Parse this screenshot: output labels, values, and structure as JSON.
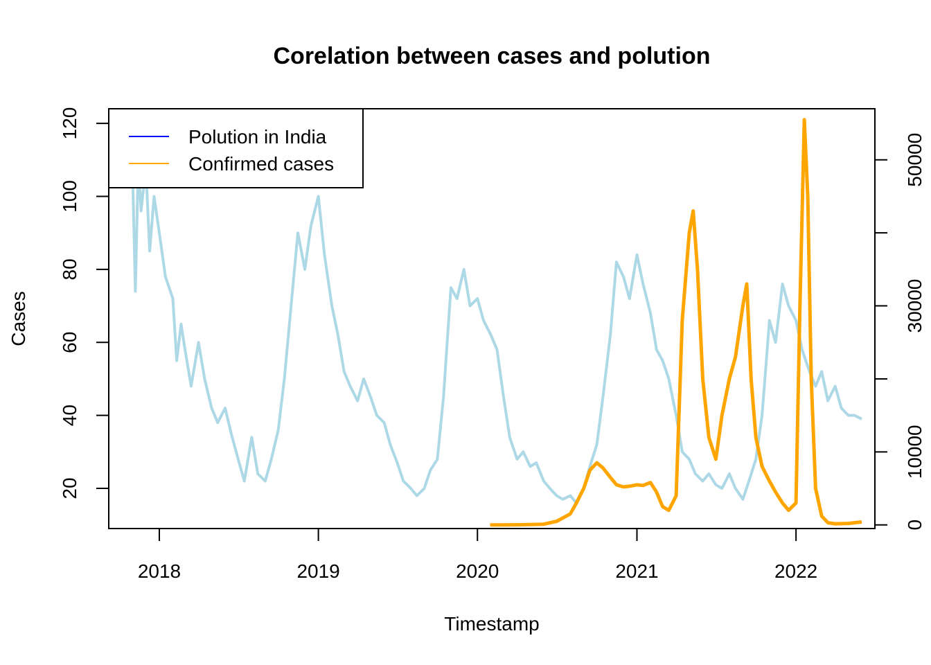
{
  "chart_data": {
    "type": "line",
    "title": "Corelation between cases and polution",
    "xlabel": "Timestamp",
    "ylabel": "Cases",
    "x_ticks": [
      "2018",
      "2019",
      "2020",
      "2021",
      "2022"
    ],
    "x_range": [
      "2017-09-07",
      "2022-07-01"
    ],
    "y_left_ticks": [
      20,
      40,
      60,
      80,
      100,
      120
    ],
    "y_left_range": [
      9,
      124
    ],
    "y_right_ticks": [
      0,
      10000,
      30000,
      50000
    ],
    "y_right_range": [
      -500,
      57000
    ],
    "grid": false,
    "legend_position": "top-left",
    "legend": [
      {
        "label": "Polution in India",
        "color": "#0000ff"
      },
      {
        "label": "Confirmed cases",
        "color": "#ffa500"
      }
    ],
    "series": [
      {
        "name": "Polution in India",
        "axis": "left",
        "color": "#add8e6",
        "points": [
          [
            "2017-11-01",
            105
          ],
          [
            "2017-11-07",
            74
          ],
          [
            "2017-11-14",
            110
          ],
          [
            "2017-11-20",
            96
          ],
          [
            "2017-12-01",
            108
          ],
          [
            "2017-12-10",
            85
          ],
          [
            "2017-12-20",
            100
          ],
          [
            "2018-01-01",
            90
          ],
          [
            "2018-01-15",
            78
          ],
          [
            "2018-02-01",
            72
          ],
          [
            "2018-02-10",
            55
          ],
          [
            "2018-02-20",
            65
          ],
          [
            "2018-03-01",
            58
          ],
          [
            "2018-03-15",
            48
          ],
          [
            "2018-04-01",
            60
          ],
          [
            "2018-04-15",
            50
          ],
          [
            "2018-05-01",
            42
          ],
          [
            "2018-05-15",
            38
          ],
          [
            "2018-06-01",
            42
          ],
          [
            "2018-06-15",
            35
          ],
          [
            "2018-07-01",
            28
          ],
          [
            "2018-07-15",
            22
          ],
          [
            "2018-08-01",
            34
          ],
          [
            "2018-08-15",
            24
          ],
          [
            "2018-09-01",
            22
          ],
          [
            "2018-09-15",
            28
          ],
          [
            "2018-10-01",
            36
          ],
          [
            "2018-10-15",
            50
          ],
          [
            "2018-11-01",
            72
          ],
          [
            "2018-11-15",
            90
          ],
          [
            "2018-12-01",
            80
          ],
          [
            "2018-12-15",
            92
          ],
          [
            "2019-01-01",
            100
          ],
          [
            "2019-01-15",
            84
          ],
          [
            "2019-02-01",
            70
          ],
          [
            "2019-02-15",
            62
          ],
          [
            "2019-03-01",
            52
          ],
          [
            "2019-03-15",
            48
          ],
          [
            "2019-04-01",
            44
          ],
          [
            "2019-04-15",
            50
          ],
          [
            "2019-05-01",
            45
          ],
          [
            "2019-05-15",
            40
          ],
          [
            "2019-06-01",
            38
          ],
          [
            "2019-06-15",
            32
          ],
          [
            "2019-07-01",
            27
          ],
          [
            "2019-07-15",
            22
          ],
          [
            "2019-08-01",
            20
          ],
          [
            "2019-08-15",
            18
          ],
          [
            "2019-09-01",
            20
          ],
          [
            "2019-09-15",
            25
          ],
          [
            "2019-10-01",
            28
          ],
          [
            "2019-10-15",
            45
          ],
          [
            "2019-11-01",
            75
          ],
          [
            "2019-11-15",
            72
          ],
          [
            "2019-12-01",
            80
          ],
          [
            "2019-12-15",
            70
          ],
          [
            "2020-01-01",
            72
          ],
          [
            "2020-01-15",
            66
          ],
          [
            "2020-02-01",
            62
          ],
          [
            "2020-02-15",
            58
          ],
          [
            "2020-03-01",
            45
          ],
          [
            "2020-03-15",
            34
          ],
          [
            "2020-04-01",
            28
          ],
          [
            "2020-04-15",
            30
          ],
          [
            "2020-05-01",
            26
          ],
          [
            "2020-05-15",
            27
          ],
          [
            "2020-06-01",
            22
          ],
          [
            "2020-06-15",
            20
          ],
          [
            "2020-07-01",
            18
          ],
          [
            "2020-07-15",
            17
          ],
          [
            "2020-08-01",
            18
          ],
          [
            "2020-08-15",
            16
          ],
          [
            "2020-09-01",
            20
          ],
          [
            "2020-09-15",
            26
          ],
          [
            "2020-10-01",
            32
          ],
          [
            "2020-10-15",
            45
          ],
          [
            "2020-11-01",
            62
          ],
          [
            "2020-11-15",
            82
          ],
          [
            "2020-12-01",
            78
          ],
          [
            "2020-12-15",
            72
          ],
          [
            "2021-01-01",
            84
          ],
          [
            "2021-01-15",
            76
          ],
          [
            "2021-02-01",
            68
          ],
          [
            "2021-02-15",
            58
          ],
          [
            "2021-03-01",
            55
          ],
          [
            "2021-03-15",
            50
          ],
          [
            "2021-04-01",
            40
          ],
          [
            "2021-04-15",
            30
          ],
          [
            "2021-05-01",
            28
          ],
          [
            "2021-05-15",
            24
          ],
          [
            "2021-06-01",
            22
          ],
          [
            "2021-06-15",
            24
          ],
          [
            "2021-07-01",
            21
          ],
          [
            "2021-07-15",
            20
          ],
          [
            "2021-08-01",
            24
          ],
          [
            "2021-08-15",
            20
          ],
          [
            "2021-09-01",
            17
          ],
          [
            "2021-09-15",
            22
          ],
          [
            "2021-10-01",
            28
          ],
          [
            "2021-10-15",
            40
          ],
          [
            "2021-11-01",
            66
          ],
          [
            "2021-11-15",
            60
          ],
          [
            "2021-12-01",
            76
          ],
          [
            "2021-12-15",
            70
          ],
          [
            "2022-01-01",
            66
          ],
          [
            "2022-01-15",
            58
          ],
          [
            "2022-02-01",
            52
          ],
          [
            "2022-02-15",
            48
          ],
          [
            "2022-03-01",
            52
          ],
          [
            "2022-03-15",
            44
          ],
          [
            "2022-04-01",
            48
          ],
          [
            "2022-04-15",
            42
          ],
          [
            "2022-05-01",
            40
          ],
          [
            "2022-05-15",
            40
          ],
          [
            "2022-06-01",
            39
          ]
        ]
      },
      {
        "name": "Confirmed cases",
        "axis": "right",
        "color": "#ffa500",
        "points": [
          [
            "2020-01-30",
            0
          ],
          [
            "2020-03-01",
            0
          ],
          [
            "2020-04-01",
            10
          ],
          [
            "2020-05-01",
            50
          ],
          [
            "2020-06-01",
            100
          ],
          [
            "2020-07-01",
            500
          ],
          [
            "2020-08-01",
            1500
          ],
          [
            "2020-08-15",
            3000
          ],
          [
            "2020-09-01",
            5000
          ],
          [
            "2020-09-15",
            7500
          ],
          [
            "2020-10-01",
            8500
          ],
          [
            "2020-10-15",
            7800
          ],
          [
            "2020-11-01",
            6500
          ],
          [
            "2020-11-15",
            5500
          ],
          [
            "2020-12-01",
            5200
          ],
          [
            "2020-12-15",
            5300
          ],
          [
            "2021-01-01",
            5500
          ],
          [
            "2021-01-15",
            5400
          ],
          [
            "2021-02-01",
            5800
          ],
          [
            "2021-02-15",
            4500
          ],
          [
            "2021-03-01",
            2500
          ],
          [
            "2021-03-15",
            2000
          ],
          [
            "2021-04-01",
            4000
          ],
          [
            "2021-04-15",
            28000
          ],
          [
            "2021-05-01",
            40000
          ],
          [
            "2021-05-10",
            43000
          ],
          [
            "2021-05-20",
            35000
          ],
          [
            "2021-06-01",
            20000
          ],
          [
            "2021-06-15",
            12000
          ],
          [
            "2021-07-01",
            9000
          ],
          [
            "2021-07-15",
            15000
          ],
          [
            "2021-08-01",
            20000
          ],
          [
            "2021-08-15",
            23000
          ],
          [
            "2021-09-01",
            30000
          ],
          [
            "2021-09-10",
            33000
          ],
          [
            "2021-09-20",
            20000
          ],
          [
            "2021-10-01",
            12000
          ],
          [
            "2021-10-15",
            8000
          ],
          [
            "2021-11-01",
            6000
          ],
          [
            "2021-11-15",
            4500
          ],
          [
            "2021-12-01",
            3000
          ],
          [
            "2021-12-15",
            2000
          ],
          [
            "2022-01-01",
            3000
          ],
          [
            "2022-01-10",
            30000
          ],
          [
            "2022-01-20",
            55500
          ],
          [
            "2022-01-28",
            45000
          ],
          [
            "2022-02-05",
            20000
          ],
          [
            "2022-02-15",
            5000
          ],
          [
            "2022-03-01",
            1200
          ],
          [
            "2022-03-15",
            300
          ],
          [
            "2022-04-01",
            150
          ],
          [
            "2022-05-01",
            200
          ],
          [
            "2022-06-01",
            400
          ]
        ]
      }
    ]
  }
}
